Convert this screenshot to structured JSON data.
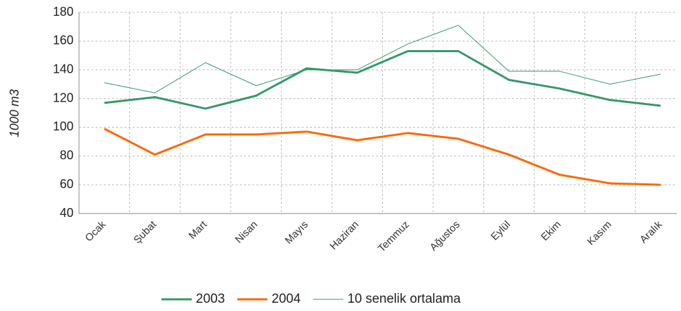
{
  "chart_data": {
    "type": "line",
    "y_label": "1000 m3",
    "categories": [
      "Ocak",
      "Şubat",
      "Mart",
      "Nisan",
      "Mayıs",
      "Haziran",
      "Temmuz",
      "Ağustos",
      "Eylül",
      "Ekim",
      "Kasım",
      "Aralık"
    ],
    "series": [
      {
        "name": "2003",
        "color": "#339966",
        "values": [
          117,
          121,
          113,
          122,
          141,
          138,
          153,
          153,
          133,
          127,
          119,
          115
        ]
      },
      {
        "name": "2004",
        "color": "#ff6600",
        "values": [
          99,
          81,
          95,
          95,
          97,
          91,
          96,
          92,
          81,
          67,
          61,
          60
        ]
      },
      {
        "name": "10 senelik ortalama",
        "color": "#339966",
        "values": [
          131,
          124,
          145,
          129,
          140,
          140,
          158,
          171,
          139,
          139,
          130,
          137
        ]
      }
    ],
    "ylim": [
      40,
      180
    ],
    "yticks": [
      40,
      60,
      80,
      100,
      120,
      140,
      160,
      180
    ],
    "grid": true,
    "legend": "bottom"
  }
}
